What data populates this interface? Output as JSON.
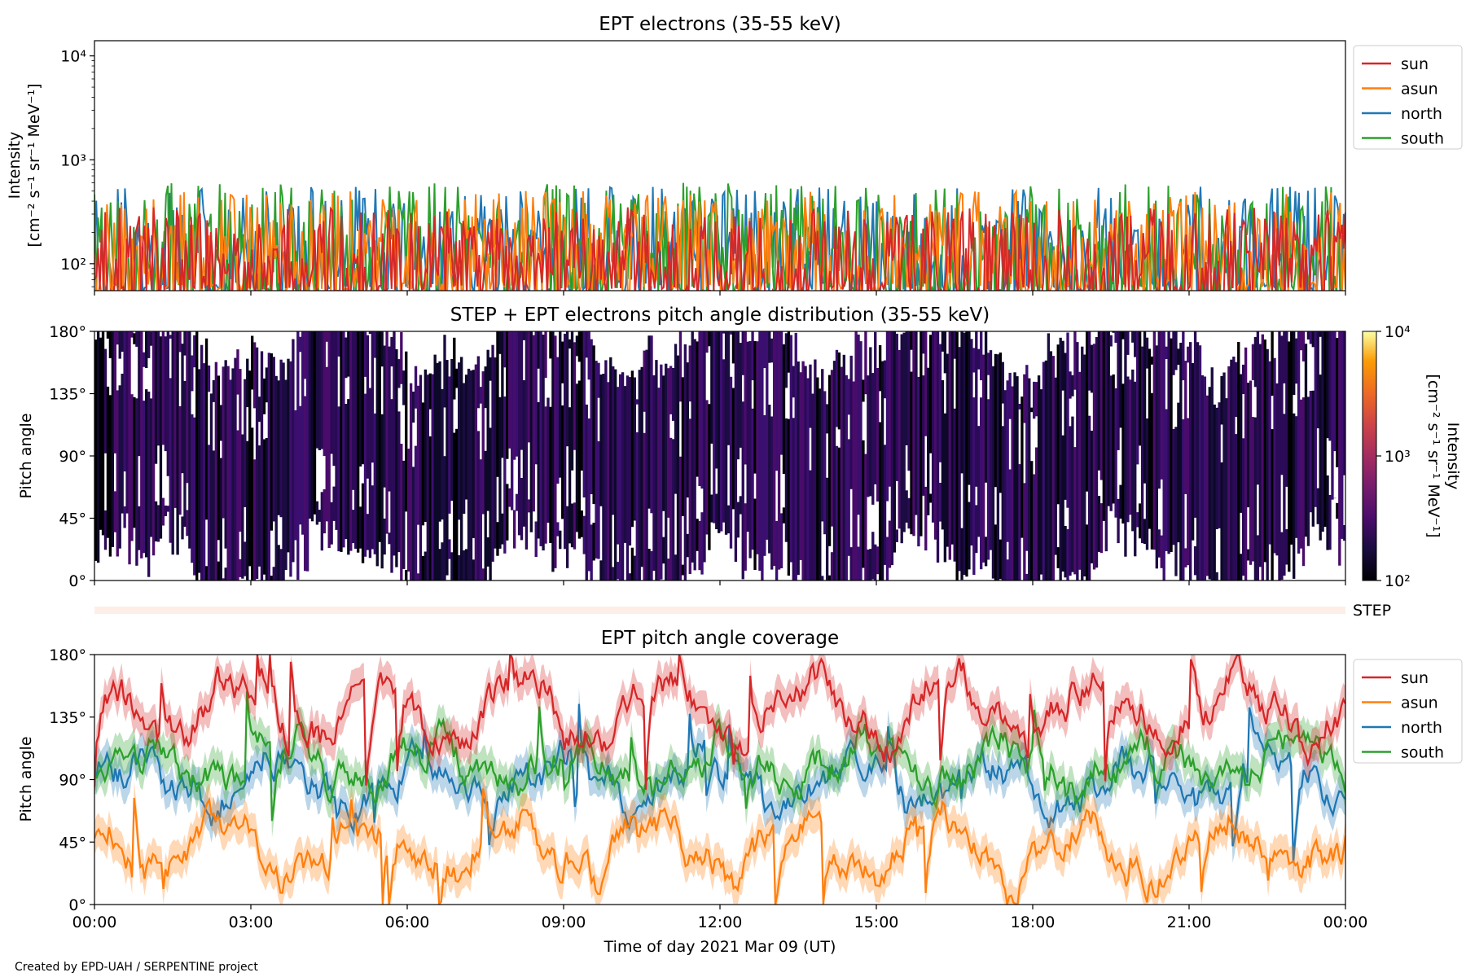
{
  "colors": {
    "sun": "#d62728",
    "asun": "#ff7f0e",
    "north": "#1f77b4",
    "south": "#2ca02c"
  },
  "chart_data": [
    {
      "type": "line",
      "title": "EPT electrons (35-55 keV)",
      "ylabel_line1": "Intensity",
      "ylabel_line2": "[cm⁻² s⁻¹ sr⁻¹ MeV⁻¹]",
      "yscale": "log",
      "ylim": [
        55,
        14000
      ],
      "ytick_labels": [
        "10²",
        "10³",
        "10⁴"
      ],
      "ytick_values": [
        100,
        1000,
        10000
      ],
      "xlim_hours": [
        0,
        24
      ],
      "legend_position": "right",
      "series": [
        {
          "name": "sun",
          "color": "#d62728",
          "typical_range": [
            55,
            350
          ]
        },
        {
          "name": "asun",
          "color": "#ff7f0e",
          "typical_range": [
            60,
            500
          ]
        },
        {
          "name": "north",
          "color": "#1f77b4",
          "typical_range": [
            60,
            550
          ]
        },
        {
          "name": "south",
          "color": "#2ca02c",
          "typical_range": [
            55,
            600
          ]
        }
      ]
    },
    {
      "type": "heatmap",
      "title": "STEP + EPT electrons pitch angle distribution (35-55 keV)",
      "ylabel": "Pitch angle",
      "ylim": [
        0,
        180
      ],
      "ytick_labels": [
        "0°",
        "45°",
        "90°",
        "135°",
        "180°"
      ],
      "ytick_values": [
        0,
        45,
        90,
        135,
        180
      ],
      "colorbar": {
        "label_line1": "Intensity",
        "label_line2": "[cm⁻² s⁻¹ sr⁻¹ MeV⁻¹]",
        "scale": "log",
        "range": [
          100,
          10000
        ],
        "tick_labels": [
          "10²",
          "10³",
          "10⁴"
        ],
        "colormap": "inferno"
      }
    },
    {
      "type": "band",
      "label": "STEP"
    },
    {
      "type": "line",
      "title": "EPT pitch angle coverage",
      "ylabel": "Pitch angle",
      "ylim": [
        0,
        180
      ],
      "ytick_labels": [
        "0°",
        "45°",
        "90°",
        "135°",
        "180°"
      ],
      "ytick_values": [
        0,
        45,
        90,
        135,
        180
      ],
      "xlim_hours": [
        0,
        24
      ],
      "xlabel": "Time of day 2021 Mar 09 (UT)",
      "xtick_labels": [
        "00:00",
        "03:00",
        "06:00",
        "09:00",
        "12:00",
        "15:00",
        "18:00",
        "21:00",
        "00:00"
      ],
      "xtick_hours": [
        0,
        3,
        6,
        9,
        12,
        15,
        18,
        21,
        24
      ],
      "legend_position": "right",
      "series": [
        {
          "name": "sun",
          "color": "#d62728",
          "typical_mean": 140
        },
        {
          "name": "asun",
          "color": "#ff7f0e",
          "typical_mean": 40
        },
        {
          "name": "north",
          "color": "#1f77b4",
          "typical_mean": 88
        },
        {
          "name": "south",
          "color": "#2ca02c",
          "typical_mean": 100
        }
      ]
    }
  ],
  "credit": "Created by EPD-UAH / SERPENTINE project"
}
